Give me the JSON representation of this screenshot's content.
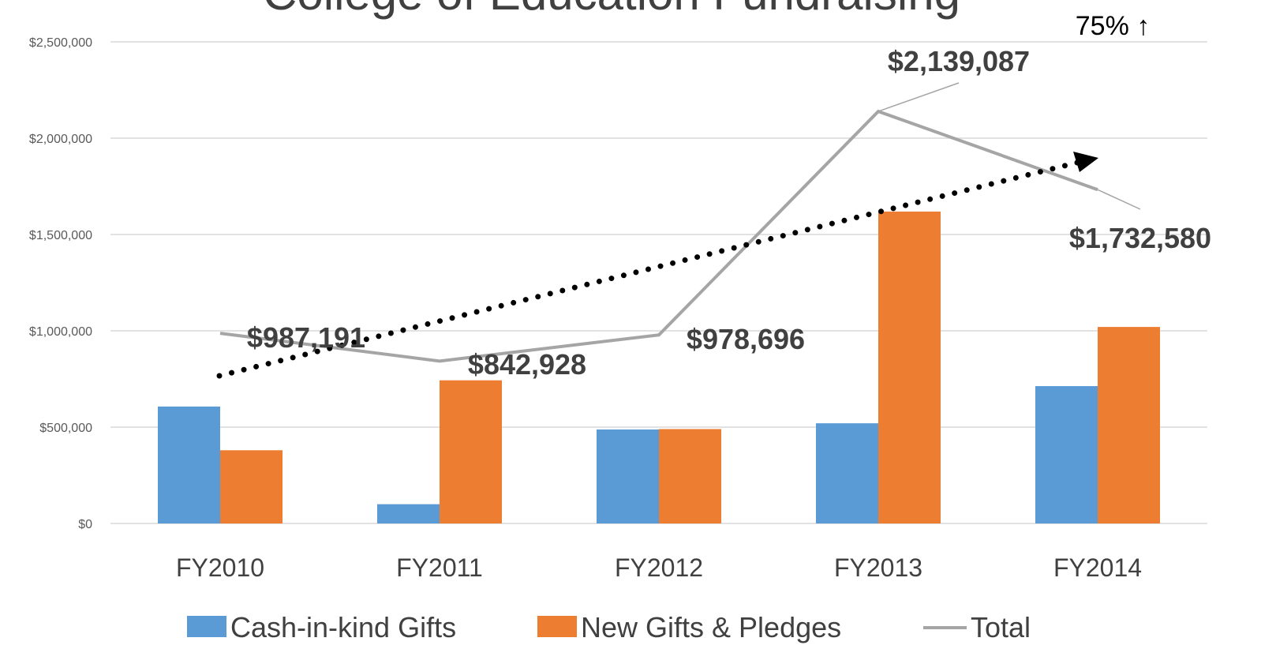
{
  "chart_data": {
    "type": "bar",
    "title": "College of Education Fundraising",
    "annotation": "75% ↑",
    "categories": [
      "FY2010",
      "FY2011",
      "FY2012",
      "FY2013",
      "FY2014"
    ],
    "series": [
      {
        "name": "Cash-in-kind Gifts",
        "color": "#5b9bd5",
        "type": "bar",
        "values": [
          607000,
          100000,
          488000,
          520000,
          713000
        ]
      },
      {
        "name": "New Gifts & Pledges",
        "color": "#ed7d31",
        "type": "bar",
        "values": [
          380000,
          743000,
          490000,
          1619000,
          1020000
        ]
      },
      {
        "name": "Total",
        "color": "#a5a5a5",
        "type": "line",
        "values": [
          987191,
          842928,
          978696,
          2139087,
          1732580
        ],
        "value_labels": [
          "$987,191",
          "$842,928",
          "$978,696",
          "$2,139,087",
          "$1,732,580"
        ]
      }
    ],
    "ylim": [
      0,
      2500000
    ],
    "yticks": [
      {
        "value": 0,
        "label": "$0"
      },
      {
        "value": 500000,
        "label": "$500,000"
      },
      {
        "value": 1000000,
        "label": "$1,000,000"
      },
      {
        "value": 1500000,
        "label": "$1,500,000"
      },
      {
        "value": 2000000,
        "label": "$2,000,000"
      },
      {
        "value": 2500000,
        "label": "$2,500,000"
      }
    ],
    "grid": true,
    "legend": "bottom"
  }
}
